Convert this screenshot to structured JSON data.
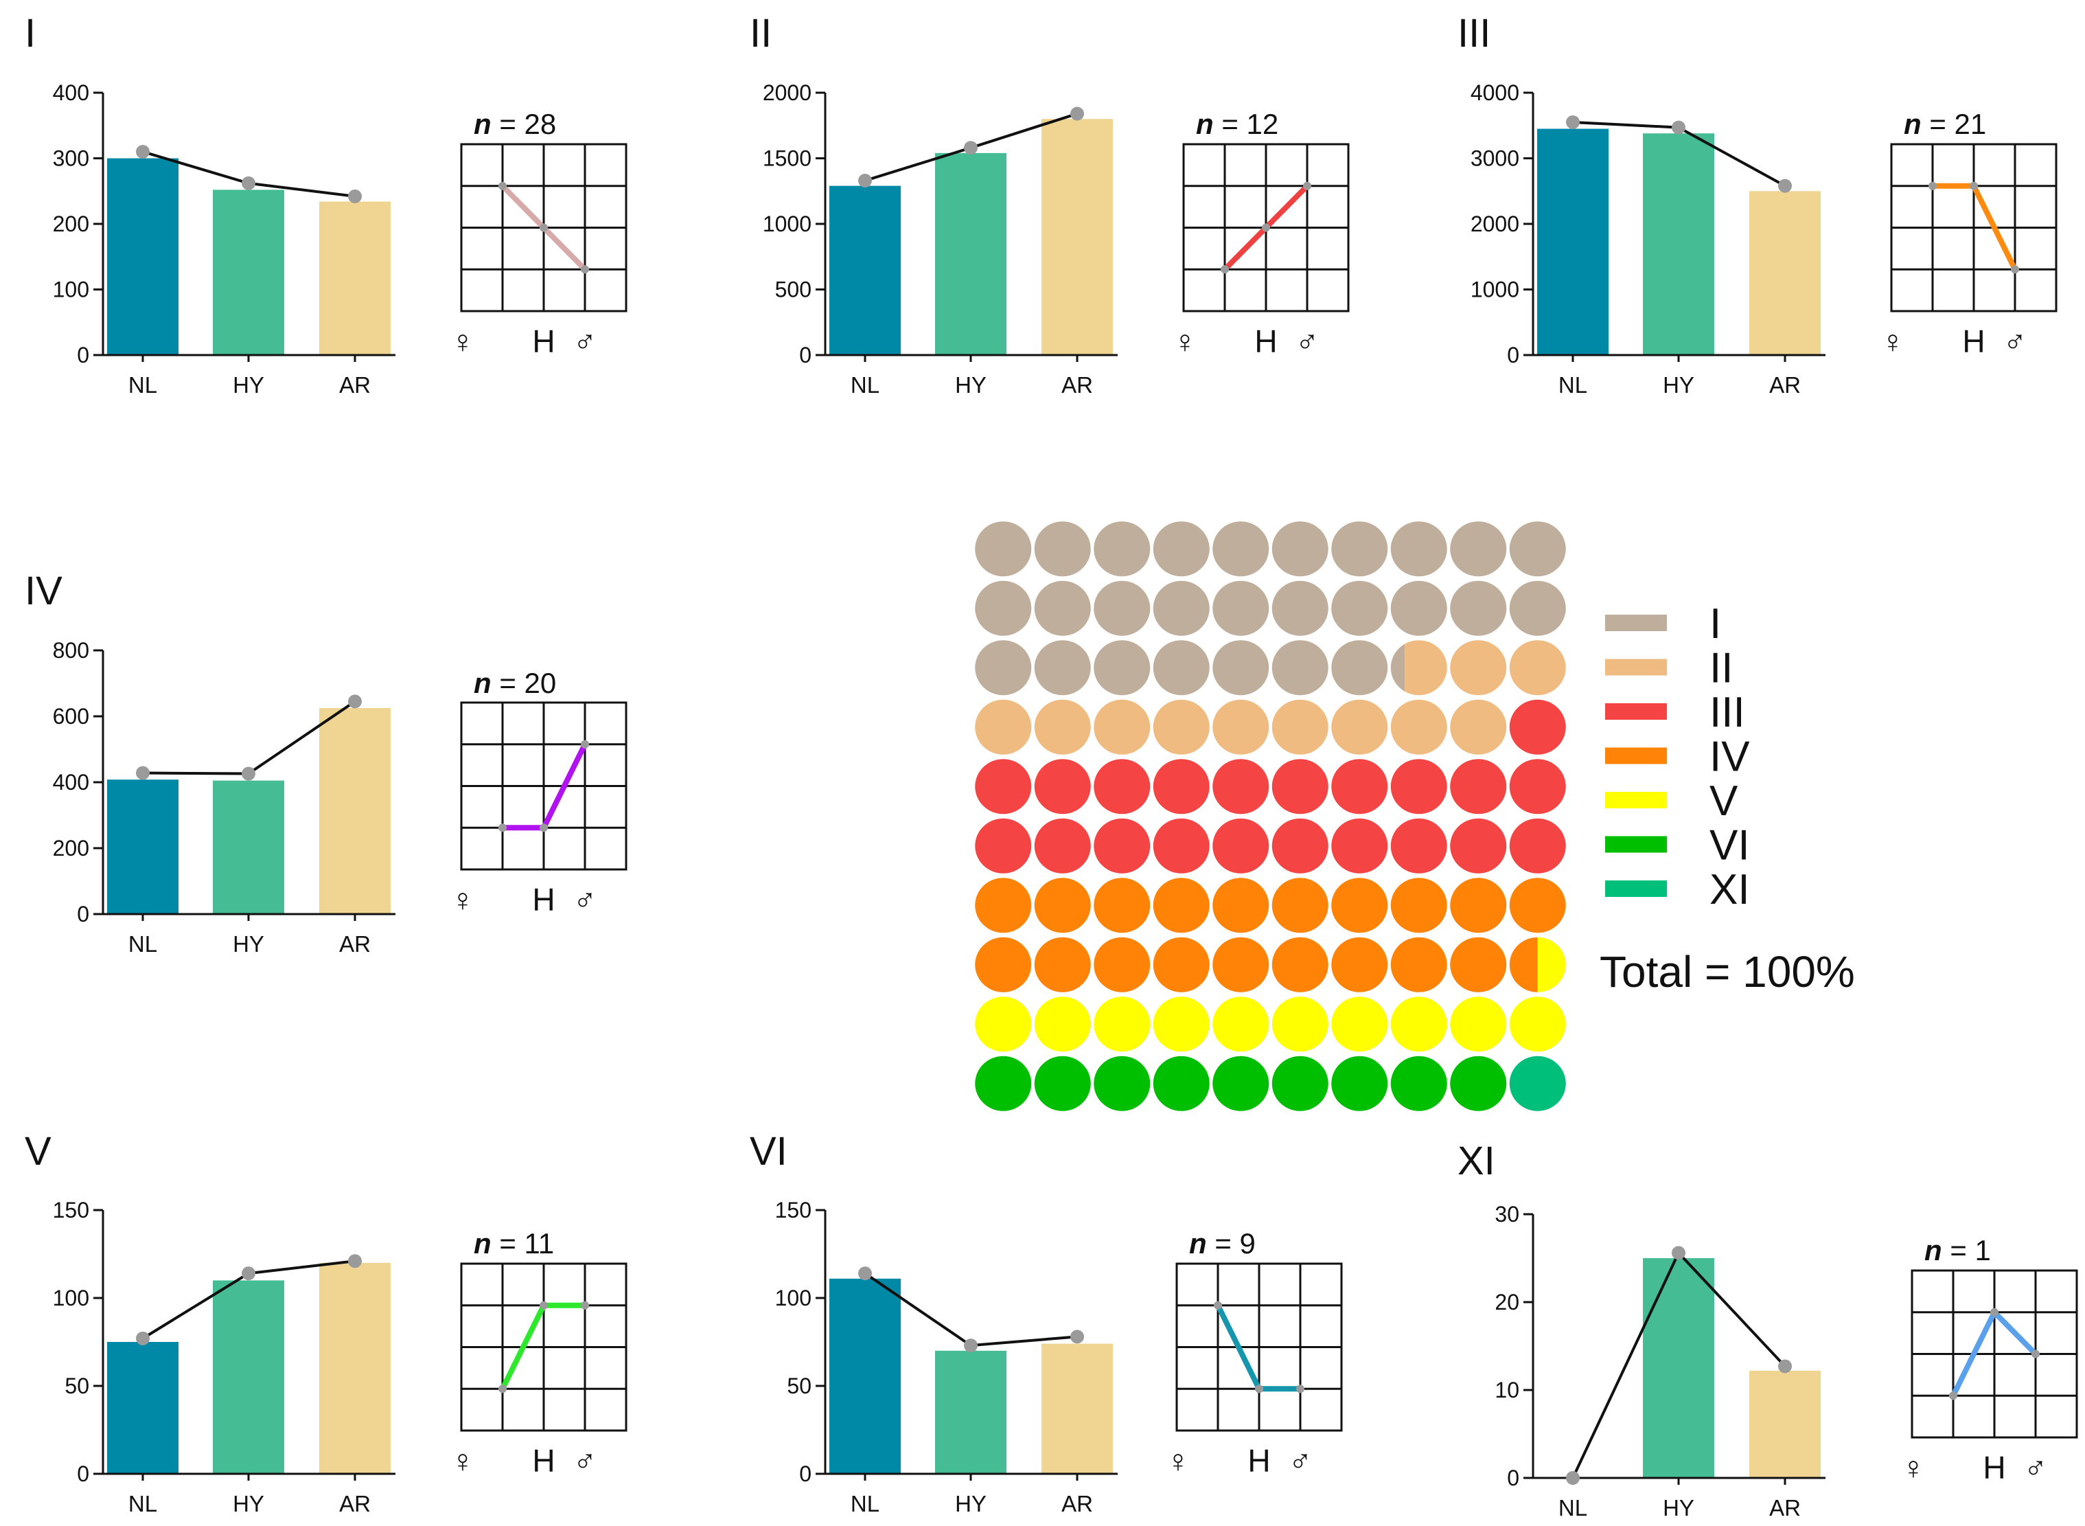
{
  "colors": {
    "NL": "#0089a7",
    "HY": "#45bc94",
    "AR": "#efd591",
    "line": "#111111",
    "point": "#9a9a9a",
    "axis": "#111111",
    "grid": "#111111"
  },
  "sex_labels": [
    "♀",
    "H",
    "♂"
  ],
  "chart_data": [
    {
      "type": "bar",
      "title": "I",
      "categories": [
        "NL",
        "HY",
        "AR"
      ],
      "values": [
        300,
        252,
        234
      ],
      "line_values": [
        310,
        262,
        242
      ],
      "ylim": [
        0,
        400
      ],
      "yticks": [
        0,
        100,
        200,
        300,
        400
      ],
      "xlabel": "",
      "ylabel": "",
      "inset": {
        "n_label": "n",
        "n_value": "= 28",
        "points": [
          3,
          2,
          1
        ],
        "color": "#d7aaaa"
      }
    },
    {
      "type": "bar",
      "title": "II",
      "categories": [
        "NL",
        "HY",
        "AR"
      ],
      "values": [
        1290,
        1540,
        1800
      ],
      "line_values": [
        1330,
        1580,
        1840
      ],
      "ylim": [
        0,
        2000
      ],
      "yticks": [
        0,
        500,
        1000,
        1500,
        2000
      ],
      "xlabel": "",
      "ylabel": "",
      "inset": {
        "n_label": "n",
        "n_value": "= 12",
        "points": [
          1,
          2,
          3
        ],
        "color": "#ee4242"
      }
    },
    {
      "type": "bar",
      "title": "III",
      "categories": [
        "NL",
        "HY",
        "AR"
      ],
      "values": [
        3450,
        3380,
        2500
      ],
      "line_values": [
        3550,
        3470,
        2580
      ],
      "ylim": [
        0,
        4000
      ],
      "yticks": [
        0,
        1000,
        2000,
        3000,
        4000
      ],
      "xlabel": "",
      "ylabel": "",
      "inset": {
        "n_label": "n",
        "n_value": "= 21",
        "points": [
          3,
          3,
          1
        ],
        "color": "#ff8a10"
      }
    },
    {
      "type": "bar",
      "title": "IV",
      "categories": [
        "NL",
        "HY",
        "AR"
      ],
      "values": [
        408,
        405,
        625
      ],
      "line_values": [
        428,
        426,
        645
      ],
      "ylim": [
        0,
        800
      ],
      "yticks": [
        0,
        200,
        400,
        600,
        800
      ],
      "xlabel": "",
      "ylabel": "",
      "inset": {
        "n_label": "n",
        "n_value": "= 20",
        "points": [
          1,
          1,
          3
        ],
        "color": "#b012f0"
      }
    },
    {
      "type": "bar",
      "title": "V",
      "categories": [
        "NL",
        "HY",
        "AR"
      ],
      "values": [
        75,
        110,
        120
      ],
      "line_values": [
        77,
        114,
        121
      ],
      "ylim": [
        0,
        150
      ],
      "yticks": [
        0,
        50,
        100,
        150
      ],
      "xlabel": "",
      "ylabel": "",
      "inset": {
        "n_label": "n",
        "n_value": "= 11",
        "points": [
          1,
          3,
          3
        ],
        "color": "#2ee82e"
      }
    },
    {
      "type": "bar",
      "title": "VI",
      "categories": [
        "NL",
        "HY",
        "AR"
      ],
      "values": [
        111,
        70,
        74
      ],
      "line_values": [
        114,
        73,
        78
      ],
      "ylim": [
        0,
        150
      ],
      "yticks": [
        0,
        50,
        100,
        150
      ],
      "xlabel": "",
      "ylabel": "",
      "inset": {
        "n_label": "n",
        "n_value": "= 9",
        "points": [
          3,
          1,
          1
        ],
        "color": "#1596ad"
      }
    },
    {
      "type": "bar",
      "title": "XI",
      "categories": [
        "NL",
        "HY",
        "AR"
      ],
      "values": [
        0,
        25,
        12.2
      ],
      "line_values": [
        0,
        25.6,
        12.7
      ],
      "ylim": [
        0,
        30
      ],
      "yticks": [
        0,
        10,
        20,
        30
      ],
      "xlabel": "",
      "ylabel": "",
      "inset": {
        "n_label": "n",
        "n_value": "= 1",
        "points": [
          1,
          3,
          2
        ],
        "color": "#5aa0ea"
      }
    },
    {
      "type": "waffle",
      "title": "",
      "total_label": "Total = 100%",
      "grid": [
        10,
        10
      ],
      "categories": [
        {
          "name": "I",
          "value": 27.25,
          "color": "#bfae9b"
        },
        {
          "name": "II",
          "value": 11.75,
          "color": "#f0bb80"
        },
        {
          "name": "III",
          "value": 21,
          "color": "#f44444"
        },
        {
          "name": "IV",
          "value": 19.5,
          "color": "#fe8306"
        },
        {
          "name": "V",
          "value": 10.5,
          "color": "#ffff00"
        },
        {
          "name": "VI",
          "value": 9,
          "color": "#00bf00"
        },
        {
          "name": "XI",
          "value": 1,
          "color": "#00bf7a"
        }
      ],
      "legend_position": "right"
    }
  ]
}
